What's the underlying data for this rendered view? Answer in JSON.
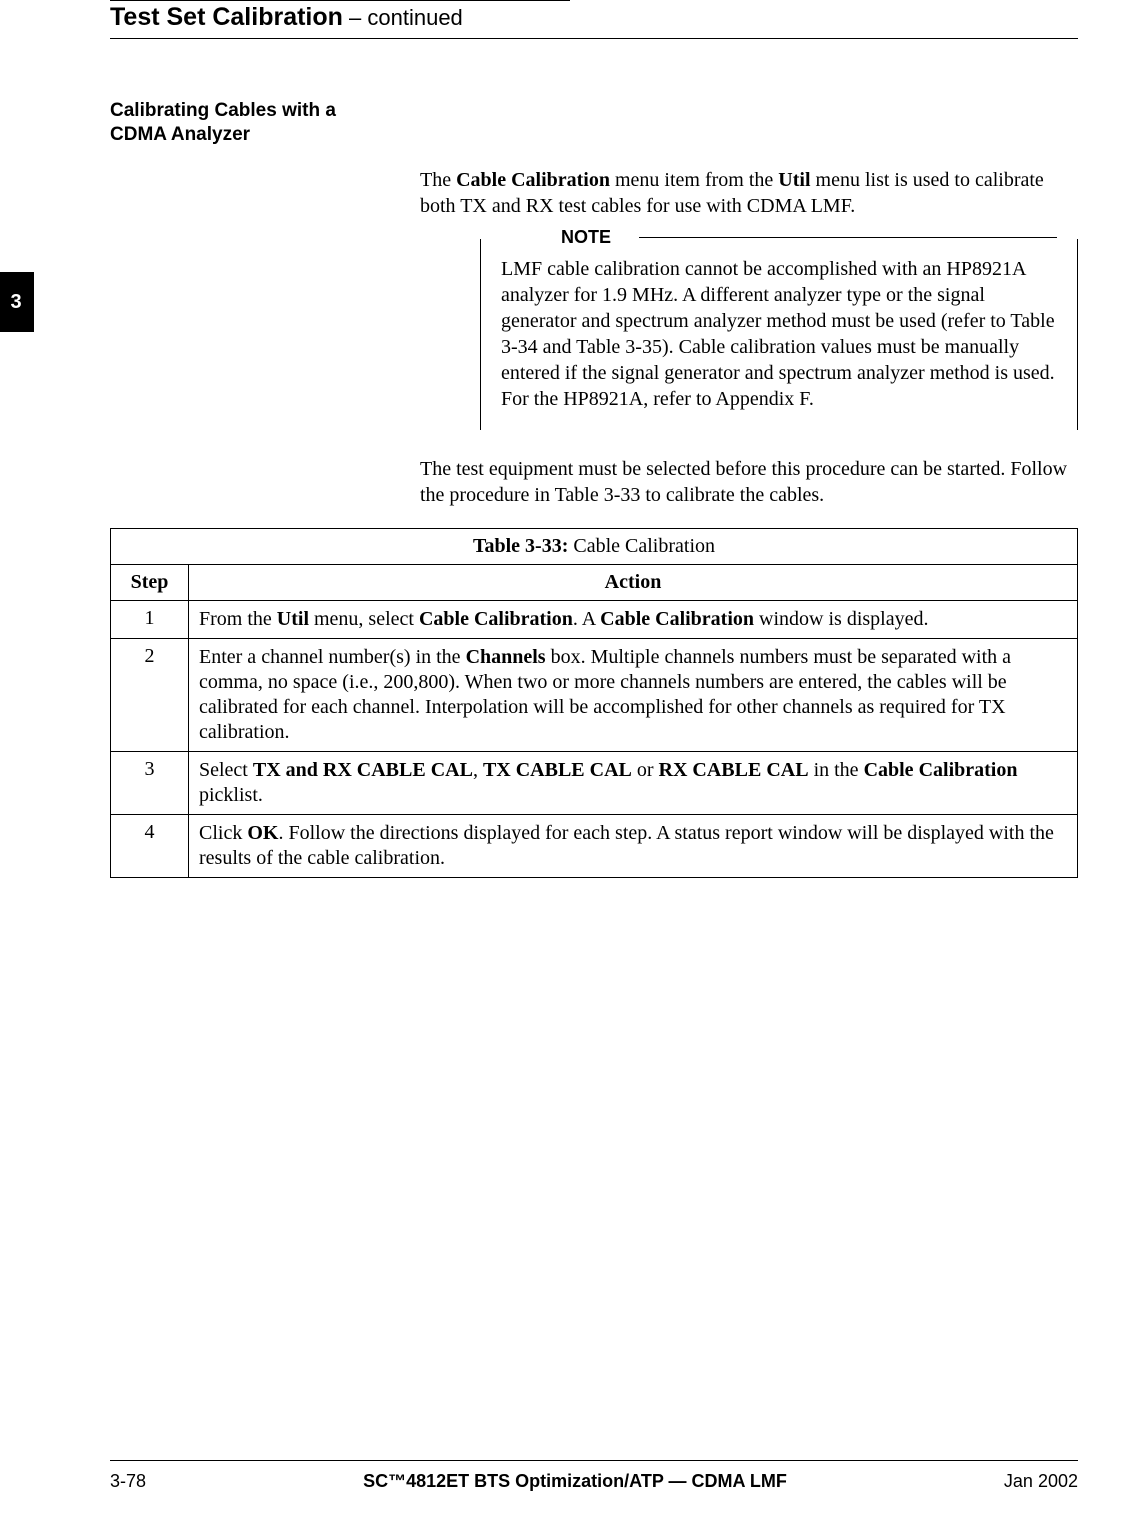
{
  "header": {
    "title_bold": "Test Set Calibration",
    "title_cont": " – continued"
  },
  "tab": {
    "label": "3"
  },
  "section": {
    "heading": "Calibrating Cables with a CDMA Analyzer"
  },
  "para1": {
    "pre": "The ",
    "b1": "Cable Calibration",
    "mid1": " menu item from the ",
    "b2": "Util",
    "post": " menu list is used to calibrate both TX and RX test cables for use with CDMA LMF."
  },
  "note": {
    "label": "NOTE",
    "text": "LMF cable calibration cannot be accomplished with an HP8921A analyzer for 1.9 MHz. A different analyzer type or the signal generator and spectrum analyzer method must be used (refer to Table 3-34 and Table 3-35). Cable calibration values must be manually entered if the signal generator and spectrum analyzer method is used. For the HP8921A, refer to Appendix F."
  },
  "para2": {
    "text": "The test equipment must be selected before this procedure can be started. Follow the procedure in Table 3-33 to calibrate the cables."
  },
  "table": {
    "title_bold": "Table 3-33:",
    "title_rest": " Cable Calibration",
    "col_step": "Step",
    "col_action": "Action",
    "rows": {
      "r1": {
        "step": "1"
      },
      "r2": {
        "step": "2"
      },
      "r3": {
        "step": "3"
      },
      "r4": {
        "step": "4"
      }
    },
    "r1": {
      "t1": "From the ",
      "b1": "Util",
      "t2": " menu, select ",
      "b2": "Cable Calibration",
      "t3": ". A ",
      "b3": "Cable Calibration",
      "t4": " window is displayed."
    },
    "r2": {
      "t1": "Enter a channel number(s) in the ",
      "b1": "Channels",
      "t2": " box. Multiple channels numbers must be separated with a comma, no space (i.e., 200,800). When two or more channels numbers are entered, the cables will be calibrated for each channel. Interpolation will be accomplished for other channels as required for TX calibration."
    },
    "r3": {
      "t1": "Select ",
      "b1": "TX and RX CABLE CAL",
      "t2": ", ",
      "b2": "TX CABLE CAL",
      "t3": " or ",
      "b3": "RX CABLE CAL",
      "t4": " in the ",
      "b4": "Cable Calibration",
      "t5": " picklist."
    },
    "r4": {
      "t1": "Click ",
      "b1": "OK",
      "t2": ". Follow the directions displayed for each step. A status report window will be displayed with the results of the cable calibration."
    }
  },
  "footer": {
    "page": "3-78",
    "center": "SC™4812ET BTS Optimization/ATP — CDMA LMF",
    "date": "Jan 2002"
  }
}
